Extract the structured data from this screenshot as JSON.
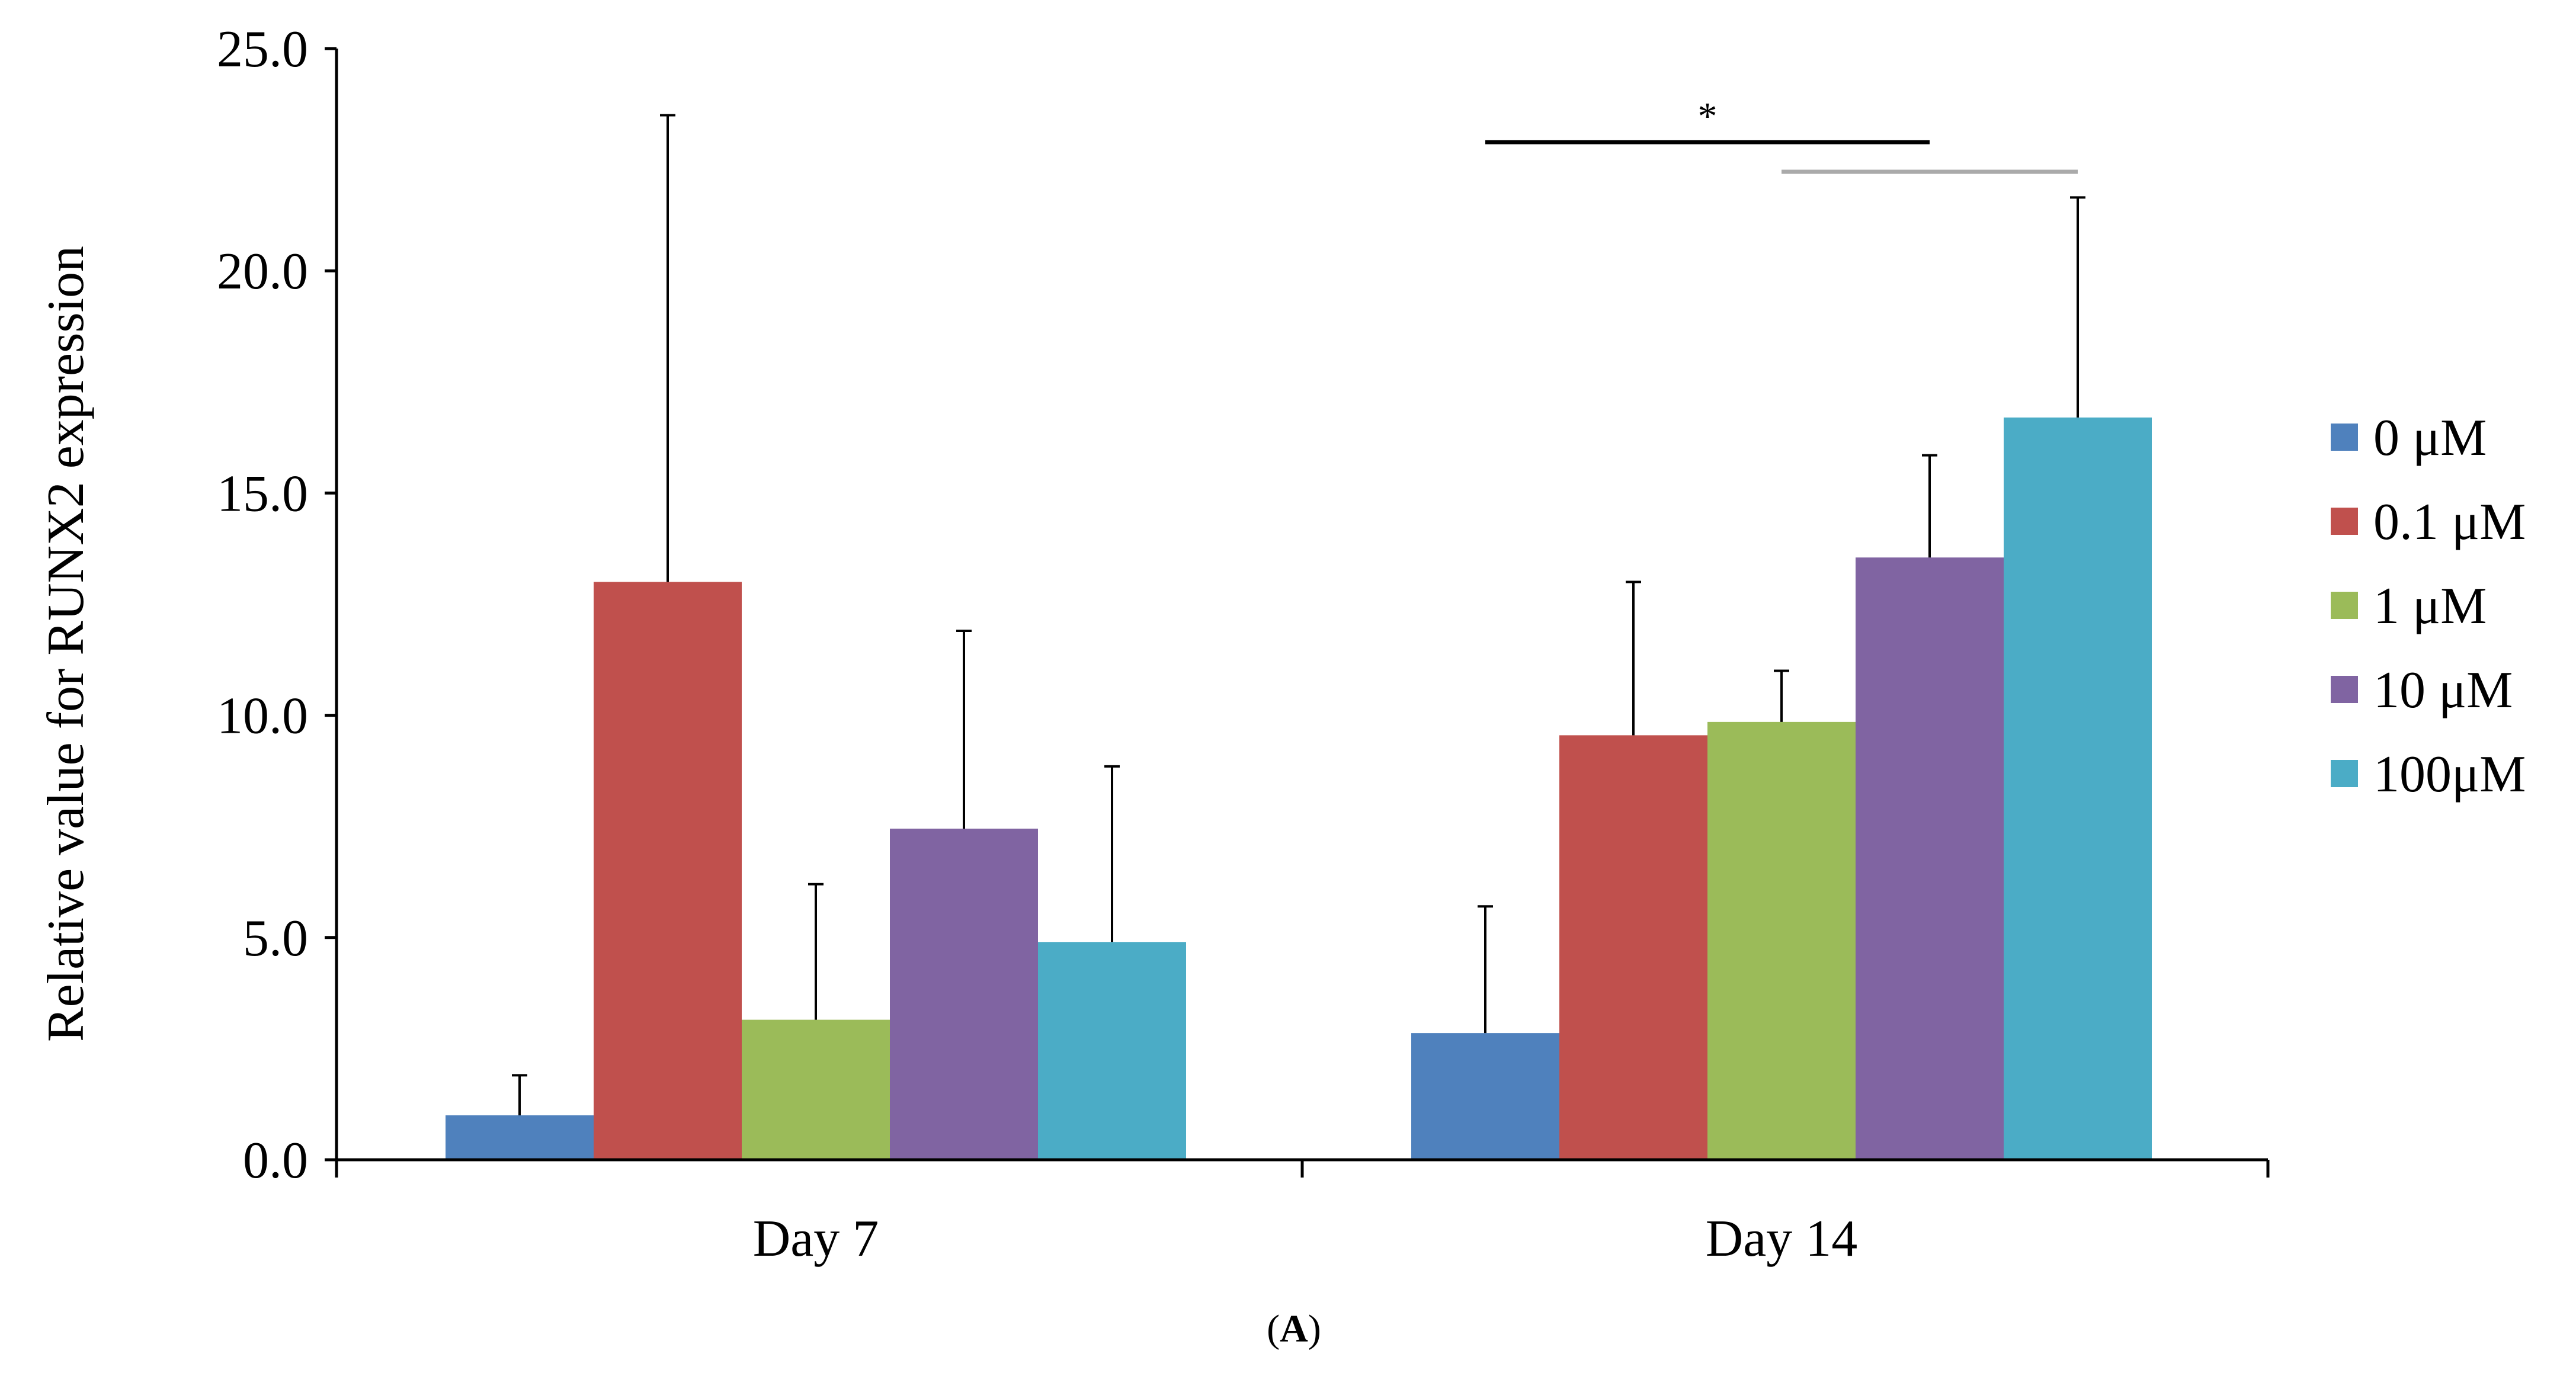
{
  "chart_data": {
    "type": "bar",
    "title": "",
    "xlabel": "",
    "ylabel": "Relative value for RUNX2 expression",
    "ylim": [
      0,
      25
    ],
    "yticks": [
      "0.0",
      "5.0",
      "10.0",
      "15.0",
      "20.0",
      "25.0"
    ],
    "ytick_values": [
      0,
      5,
      10,
      15,
      20,
      25
    ],
    "categories": [
      "Day 7",
      "Day 14"
    ],
    "series": [
      {
        "name": "0 μM",
        "color": "#4F81BD",
        "values": [
          1.0,
          2.85
        ],
        "errors": [
          0.9,
          2.85
        ]
      },
      {
        "name": "0.1 μM",
        "color": "#C0504D",
        "values": [
          13.0,
          9.55
        ],
        "errors": [
          10.5,
          3.45
        ]
      },
      {
        "name": "1 μM",
        "color": "#9BBB59",
        "values": [
          3.15,
          9.85
        ],
        "errors": [
          3.05,
          1.15
        ]
      },
      {
        "name": "10 μM",
        "color": "#8064A2",
        "values": [
          7.45,
          13.55
        ],
        "errors": [
          4.45,
          2.3
        ]
      },
      {
        "name": "100μM",
        "color": "#4BACC6",
        "values": [
          4.9,
          16.7
        ],
        "errors": [
          3.95,
          4.95
        ]
      }
    ],
    "legend_position": "right",
    "grid": false,
    "significance": [
      {
        "label": "*",
        "from_series": "0 μM",
        "to_series": "10 μM",
        "category": "Day 14",
        "color": "#000000"
      },
      {
        "label": "",
        "from_series": "1 μM",
        "to_series": "100μM",
        "category": "Day 14",
        "color": "#AAAAAA"
      }
    ],
    "panel_label": {
      "open": "(",
      "letter": "A",
      "close": ")"
    }
  }
}
